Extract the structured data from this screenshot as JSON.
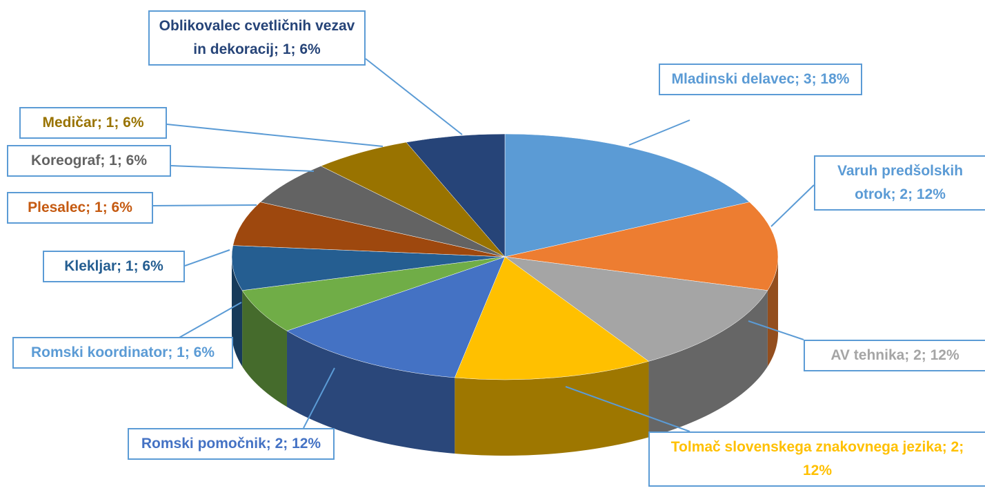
{
  "chart_data": {
    "type": "pie3d",
    "labels": [
      "Mladinski delavec; 3; 18%",
      "Varuh predšolskih otrok; 2; 12%",
      "AV tehnika; 2; 12%",
      "Tolmač slovenskega znakovnega jezika; 2; 12%",
      "Romski pomočnik; 2; 12%",
      "Romski koordinator; 1; 6%",
      "Klekljar; 1; 6%",
      "Plesalec; 1; 6%",
      "Koreograf; 1; 6%",
      "Medičar; 1; 6%",
      "Oblikovalec cvetličnih vezav in dekoracij; 1; 6%"
    ],
    "values": [
      3,
      2,
      2,
      2,
      2,
      1,
      1,
      1,
      1,
      1,
      1
    ],
    "colors": [
      "#5b9bd5",
      "#ed7d31",
      "#a5a5a5",
      "#ffc000",
      "#4472c4",
      "#70ad47",
      "#255e91",
      "#9e480e",
      "#636363",
      "#997300",
      "#264478"
    ],
    "label_colors": [
      "#5b9bd5",
      "#5b9bd5",
      "#a5a5a5",
      "#ffc000",
      "#4472c4",
      "#5b9bd5",
      "#255e91",
      "#c55a11",
      "#636363",
      "#997300",
      "#264478"
    ]
  }
}
